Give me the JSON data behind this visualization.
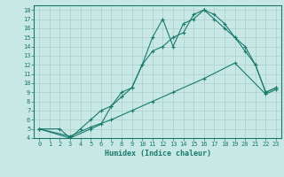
{
  "line1_x": [
    0,
    2,
    3,
    4,
    5,
    6,
    7,
    8,
    9,
    10,
    11,
    12,
    13,
    14,
    15,
    16,
    17,
    18,
    19,
    20,
    21,
    22,
    23
  ],
  "line1_y": [
    5,
    5,
    4,
    5,
    6,
    7,
    7.5,
    9,
    9.5,
    12,
    15,
    17,
    14,
    16.5,
    17,
    18,
    17,
    16,
    15,
    14,
    12,
    9,
    9.5
  ],
  "line2_x": [
    0,
    3,
    5,
    6,
    7,
    8,
    9,
    10,
    11,
    12,
    13,
    14,
    15,
    16,
    17,
    18,
    19,
    20,
    21,
    22,
    23
  ],
  "line2_y": [
    5,
    4,
    5,
    5.5,
    7.5,
    8.5,
    9.5,
    12,
    13.5,
    14,
    15,
    15.5,
    17.5,
    18,
    17.5,
    16.5,
    15,
    13.5,
    12,
    9,
    9.5
  ],
  "line3_x": [
    0,
    3,
    5,
    7,
    9,
    11,
    13,
    16,
    19,
    22,
    23
  ],
  "line3_y": [
    5,
    4.2,
    5.2,
    6.0,
    7.0,
    8.0,
    9.0,
    10.5,
    12.2,
    8.8,
    9.3
  ],
  "color": "#1a7a6e",
  "bg_color": "#c8e8e5",
  "grid_color": "#aacfcc",
  "xlabel": "Humidex (Indice chaleur)",
  "ylim": [
    4,
    18.5
  ],
  "xlim": [
    -0.5,
    23.5
  ],
  "yticks": [
    4,
    5,
    6,
    7,
    8,
    9,
    10,
    11,
    12,
    13,
    14,
    15,
    16,
    17,
    18
  ],
  "xticks": [
    0,
    1,
    2,
    3,
    4,
    5,
    6,
    7,
    8,
    9,
    10,
    11,
    12,
    13,
    14,
    15,
    16,
    17,
    18,
    19,
    20,
    21,
    22,
    23
  ]
}
